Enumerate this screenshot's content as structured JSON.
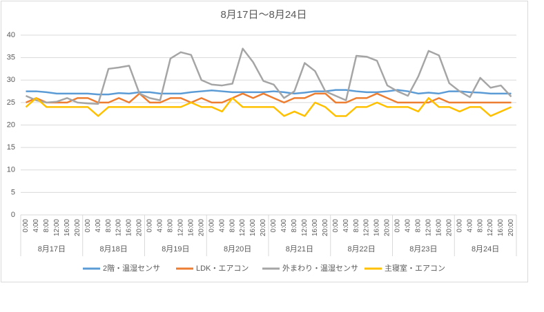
{
  "chart_data": {
    "type": "line",
    "title": "8月17日～8月24日",
    "categories": [
      "0:00",
      "4:00",
      "8:00",
      "12:00",
      "16:00",
      "20:00",
      "0:00",
      "4:00",
      "8:00",
      "12:00",
      "16:00",
      "20:00",
      "0:00",
      "4:00",
      "8:00",
      "12:00",
      "16:00",
      "20:00",
      "0:00",
      "4:00",
      "8:00",
      "12:00",
      "16:00",
      "20:00",
      "0:00",
      "4:00",
      "8:00",
      "12:00",
      "16:00",
      "20:00",
      "0:00",
      "4:00",
      "8:00",
      "12:00",
      "16:00",
      "20:00",
      "0:00",
      "4:00",
      "8:00",
      "12:00",
      "16:00",
      "20:00",
      "0:00",
      "4:00",
      "8:00",
      "12:00",
      "16:00",
      "20:00"
    ],
    "category_groups": [
      "8月17日",
      "8月18日",
      "8月19日",
      "8月20日",
      "8月21日",
      "8月22日",
      "8月23日",
      "8月24日"
    ],
    "series": [
      {
        "name": "2階・温湿センサ",
        "color": "#5b9bd5",
        "values": [
          27.5,
          27.5,
          27.3,
          27,
          27,
          27,
          27,
          26.8,
          26.8,
          27.1,
          27,
          27.3,
          27.3,
          27,
          27,
          27,
          27.3,
          27.5,
          27.7,
          27.5,
          27.3,
          27.3,
          27.3,
          27.3,
          27.5,
          27.3,
          27,
          27.2,
          27.5,
          27.5,
          27.8,
          27.8,
          27.5,
          27.3,
          27.3,
          27.5,
          27.8,
          27.5,
          27,
          27.2,
          27,
          27.5,
          27.5,
          27.3,
          27.2,
          27,
          27,
          27
        ]
      },
      {
        "name": "LDK・エアコン",
        "color": "#ed7d31",
        "values": [
          25,
          26,
          25,
          25,
          25,
          26,
          26,
          25,
          25,
          26,
          25,
          27,
          25,
          25,
          26,
          26,
          25,
          26,
          25,
          25,
          26,
          27,
          26,
          27,
          26,
          25,
          26,
          26,
          27,
          27,
          25,
          25,
          26,
          26,
          27,
          26,
          25,
          25,
          25,
          25,
          26,
          25,
          25,
          25,
          25,
          25,
          25,
          25
        ]
      },
      {
        "name": "外まわり・温湿センサ",
        "color": "#a5a5a5",
        "values": [
          26.5,
          25.5,
          25,
          25.2,
          26,
          25,
          24.8,
          24.7,
          32.5,
          32.8,
          33.2,
          27,
          26,
          25.5,
          34.8,
          36.2,
          35.6,
          30,
          29,
          28.8,
          29.2,
          37,
          34,
          29.8,
          29,
          26,
          27.5,
          33.8,
          32,
          27.5,
          26.5,
          25.5,
          35.4,
          35.2,
          34.3,
          28.8,
          27.5,
          26.5,
          30.8,
          36.5,
          35.5,
          29.3,
          27.5,
          26.2,
          30.5,
          28.3,
          28.8,
          26.3
        ]
      },
      {
        "name": "主寝室・エアコン",
        "color": "#ffc000",
        "values": [
          24,
          26,
          24,
          24,
          24,
          24,
          24,
          22,
          24,
          24,
          24,
          24,
          24,
          24,
          24,
          24,
          25,
          24,
          24,
          23,
          26,
          24,
          24,
          24,
          24,
          22,
          23,
          22,
          25,
          24,
          22,
          22,
          24,
          24,
          25,
          24,
          24,
          24,
          23,
          26,
          24,
          24,
          23,
          24,
          24,
          22,
          23,
          24
        ]
      }
    ],
    "ylim": [
      0,
      40
    ],
    "yticks": [
      0,
      5,
      10,
      15,
      20,
      25,
      30,
      35,
      40
    ],
    "grid": true,
    "legend": "bottom"
  }
}
